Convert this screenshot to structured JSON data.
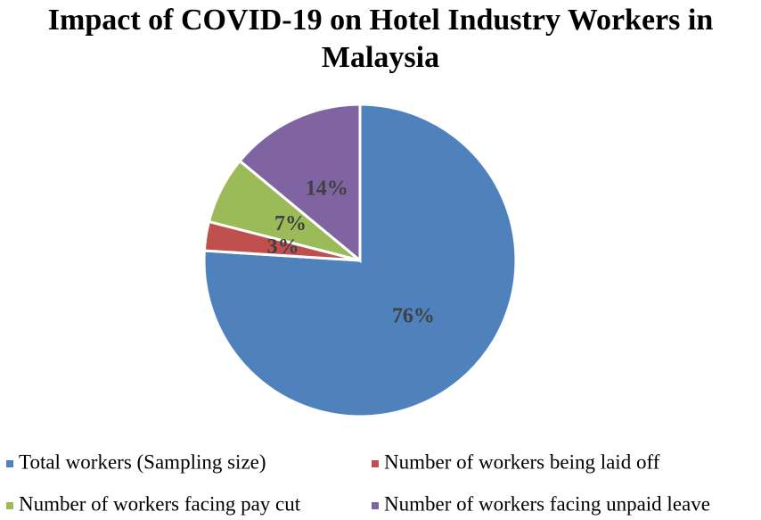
{
  "chart_data": {
    "type": "pie",
    "title": "Impact of COVID-19 on Hotel Industry Workers in Malaysia",
    "categories": [
      "Total workers (Sampling size)",
      "Number of workers being laid off",
      "Number of workers facing pay cut",
      "Number of workers facing unpaid leave"
    ],
    "values": [
      76,
      3,
      7,
      14
    ],
    "value_labels": [
      "76%",
      "3%",
      "7%",
      "14%"
    ],
    "colors": [
      "#4f81bd",
      "#c0504d",
      "#9bbb59",
      "#8064a2"
    ],
    "legend": "bottom"
  }
}
